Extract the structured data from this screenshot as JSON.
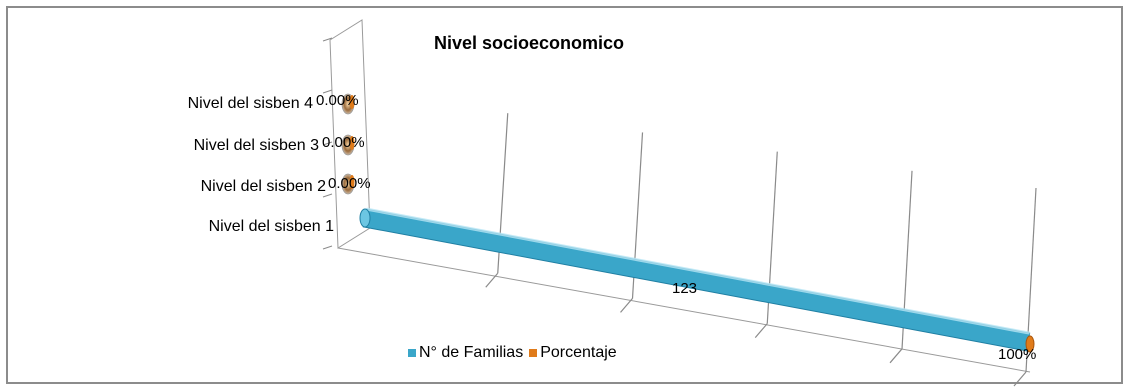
{
  "chart_data": {
    "type": "bar",
    "orientation": "horizontal-3d-cylinder",
    "title": "Nivel socioeconomico",
    "categories": [
      "Nivel del sisben 1",
      "Nivel del sisben 2",
      "Nivel del sisben 3",
      "Nivel del sisben 4"
    ],
    "series": [
      {
        "name": "N° de Familias",
        "values": [
          123,
          0,
          0,
          0
        ],
        "labels": [
          "123",
          "",
          "",
          ""
        ]
      },
      {
        "name": "Porcentaje",
        "values": [
          100,
          0,
          0,
          0
        ],
        "labels": [
          "100%",
          "0.00%",
          "0.00%",
          "0.00%"
        ]
      }
    ],
    "legend_position": "bottom",
    "grid": true,
    "colors": {
      "N° de Familias": "#3aa6c9",
      "Porcentaje": "#e07b1a"
    }
  }
}
